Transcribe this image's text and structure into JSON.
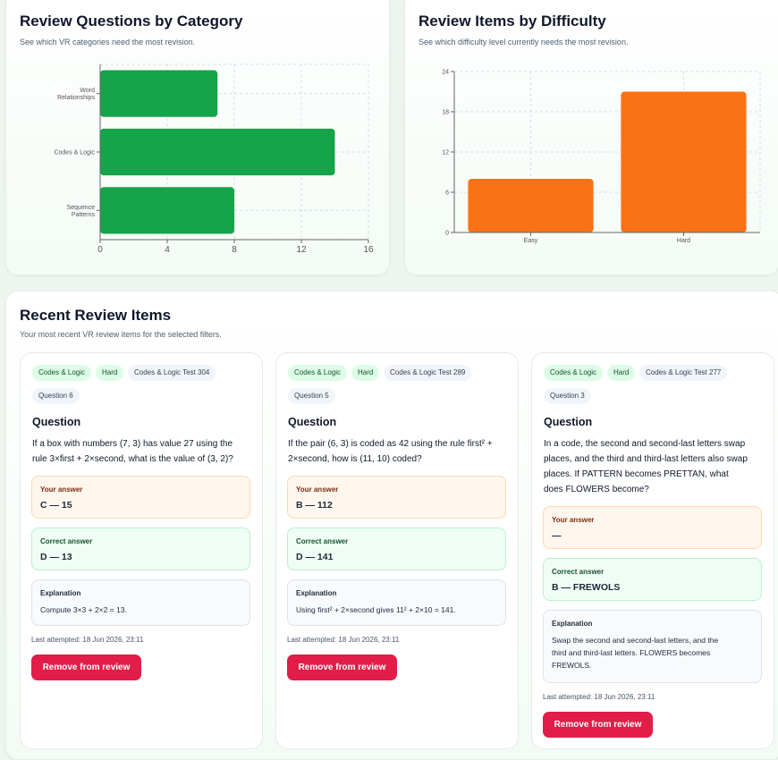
{
  "category_panel": {
    "title": "Review Questions by Category",
    "subtitle": "See which VR categories need the most revision."
  },
  "difficulty_panel": {
    "title": "Review Items by Difficulty",
    "subtitle": "See which difficulty level currently needs the most revision."
  },
  "chart_data": [
    {
      "type": "bar",
      "orientation": "horizontal",
      "categories": [
        [
          "Word",
          "Relationships"
        ],
        [
          "Codes & Logic"
        ],
        [
          "Sequence",
          "Patterns"
        ]
      ],
      "values": [
        7,
        14,
        8
      ],
      "xlim": [
        0,
        16
      ],
      "ticks": [
        0,
        4,
        8,
        12,
        16
      ],
      "grid": true,
      "color": "#16a34a"
    },
    {
      "type": "bar",
      "orientation": "vertical",
      "categories": [
        "Easy",
        "Hard"
      ],
      "values": [
        8,
        21
      ],
      "ylim": [
        0,
        24
      ],
      "ticks": [
        0,
        6,
        12,
        18,
        24
      ],
      "grid": true,
      "color": "#f97316"
    }
  ],
  "recent": {
    "title": "Recent Review Items",
    "subtitle": "Your most recent VR review items for the selected filters.",
    "cards": [
      {
        "chips": [
          "Codes & Logic",
          "Hard",
          "Codes & Logic Test 304",
          "Question 6"
        ],
        "question_heading": "Question",
        "question_lines": [
          "If a box with numbers (7, 3) has value 27 using the",
          "rule 3×first + 2×second, what is the value of (3, 2)?"
        ],
        "your_answer_label": "Your answer",
        "your_answer": "C — 15",
        "correct_label": "Correct answer",
        "correct_answer": "D — 13",
        "explanation_label": "Explanation",
        "explanation_lines": [
          "Compute 3×3 + 2×2 = 13."
        ],
        "last_attempted": "Last attempted: 18 Jun 2026, 23:11",
        "remove_label": "Remove from review"
      },
      {
        "chips": [
          "Codes & Logic",
          "Hard",
          "Codes & Logic Test 289",
          "Question 5"
        ],
        "question_heading": "Question",
        "question_lines": [
          "If the pair (6, 3) is coded as 42 using the rule first² +",
          "2×second, how is (11, 10) coded?"
        ],
        "your_answer_label": "Your answer",
        "your_answer": "B — 112",
        "correct_label": "Correct answer",
        "correct_answer": "D — 141",
        "explanation_label": "Explanation",
        "explanation_lines": [
          "Using first² + 2×second gives 11² + 2×10 = 141."
        ],
        "last_attempted": "Last attempted: 18 Jun 2026, 23:11",
        "remove_label": "Remove from review"
      },
      {
        "chips": [
          "Codes & Logic",
          "Hard",
          "Codes & Logic Test 277",
          "Question 3"
        ],
        "question_heading": "Question",
        "question_lines": [
          "In a code, the second and second-last letters swap",
          "places, and the third and third-last letters also swap",
          "places. If PATTERN becomes PRETTAN, what",
          "does FLOWERS become?"
        ],
        "your_answer_label": "Your answer",
        "your_answer": "—",
        "correct_label": "Correct answer",
        "correct_answer": "B — FREWOLS",
        "explanation_label": "Explanation",
        "explanation_lines": [
          "Swap the second and second-last letters, and the",
          "third and third-last letters. FLOWERS becomes",
          "FREWOLS."
        ],
        "last_attempted": "Last attempted: 18 Jun 2026, 23:11",
        "remove_label": "Remove from review"
      }
    ]
  }
}
